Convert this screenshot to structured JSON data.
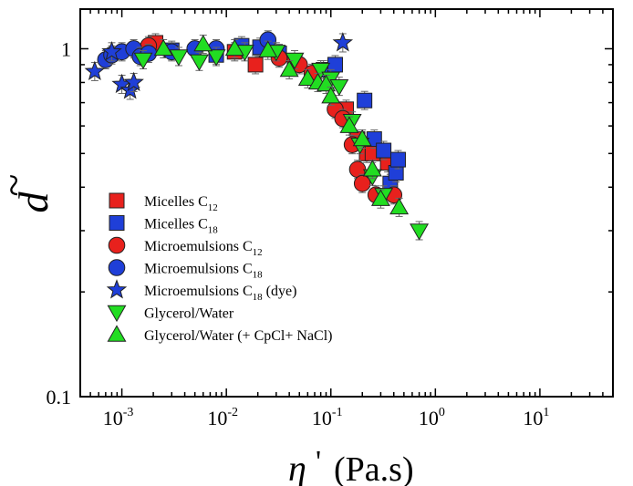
{
  "chart_data": {
    "type": "scatter",
    "xlabel": {
      "symbol": "η",
      "prime": "'",
      "unit": "(Pa.s)"
    },
    "ylabel": {
      "symbol": "d",
      "accent": "~"
    },
    "xscale": "log",
    "yscale": "log",
    "xlim": [
      0.0004,
      50
    ],
    "ylim": [
      0.1,
      1.3
    ],
    "x_ticks": [
      {
        "value": 0.001,
        "base": "10",
        "exp": "-3"
      },
      {
        "value": 0.01,
        "base": "10",
        "exp": "-2"
      },
      {
        "value": 0.1,
        "base": "10",
        "exp": "-1"
      },
      {
        "value": 1,
        "base": "10",
        "exp": "0"
      },
      {
        "value": 10,
        "base": "10",
        "exp": "1"
      }
    ],
    "y_ticks": [
      {
        "value": 0.1,
        "label": "0.1"
      },
      {
        "value": 1,
        "label": "1"
      }
    ],
    "legend_position": "left",
    "series": [
      {
        "name": "Micelles C12",
        "label": {
          "text": "Micelles C",
          "sub": "12",
          "suffix": ""
        },
        "marker": "square",
        "color": "#e8211d",
        "x": [
          0.0021,
          0.012,
          0.019,
          0.045,
          0.14,
          0.18,
          0.22,
          0.25,
          0.35
        ],
        "y": [
          1.04,
          0.98,
          0.9,
          0.9,
          0.67,
          0.55,
          0.5,
          0.5,
          0.47
        ]
      },
      {
        "name": "Micelles C18",
        "label": {
          "text": "Micelles C",
          "sub": "18",
          "suffix": ""
        },
        "marker": "square",
        "color": "#1f3fd8",
        "x": [
          0.003,
          0.008,
          0.014,
          0.021,
          0.032,
          0.085,
          0.11,
          0.21,
          0.26,
          0.32,
          0.37,
          0.42,
          0.44
        ],
        "y": [
          0.99,
          0.96,
          1.02,
          1.01,
          0.97,
          0.87,
          0.9,
          0.71,
          0.55,
          0.51,
          0.41,
          0.44,
          0.48
        ]
      },
      {
        "name": "Microemulsions C12",
        "label": {
          "text": "Microemulsions C",
          "sub": "12",
          "suffix": ""
        },
        "marker": "circle",
        "color": "#e8211d",
        "x": [
          0.0018,
          0.032,
          0.05,
          0.066,
          0.11,
          0.13,
          0.16,
          0.18,
          0.2,
          0.27,
          0.4
        ],
        "y": [
          1.02,
          0.94,
          0.9,
          0.85,
          0.67,
          0.63,
          0.53,
          0.45,
          0.41,
          0.38,
          0.38
        ]
      },
      {
        "name": "Microemulsions C18",
        "label": {
          "text": "Microemulsions C",
          "sub": "18",
          "suffix": ""
        },
        "marker": "circle",
        "color": "#1f3fd8",
        "x": [
          0.0007,
          0.0008,
          0.001,
          0.0013,
          0.0015,
          0.0018,
          0.003,
          0.005,
          0.008,
          0.025
        ],
        "y": [
          0.93,
          0.96,
          0.98,
          1.0,
          0.95,
          0.97,
          0.98,
          1.0,
          1.0,
          1.06
        ]
      },
      {
        "name": "Microemulsions C18 (dye)",
        "label": {
          "text": "Microemulsions C",
          "sub": "18",
          "suffix": " (dye)"
        },
        "marker": "star",
        "color": "#1f3fd8",
        "x": [
          0.00055,
          0.0008,
          0.001,
          0.0012,
          0.0013,
          0.13
        ],
        "y": [
          0.86,
          0.98,
          0.79,
          0.76,
          0.8,
          1.04
        ]
      },
      {
        "name": "Glycerol/Water",
        "label": {
          "text": "Glycerol/Water",
          "sub": "",
          "suffix": ""
        },
        "marker": "triangle-down",
        "color": "#22dd22",
        "x": [
          0.0016,
          0.0035,
          0.0055,
          0.008,
          0.015,
          0.03,
          0.045,
          0.08,
          0.1,
          0.12,
          0.16,
          0.19,
          0.25,
          0.32,
          0.7
        ],
        "y": [
          0.93,
          0.95,
          0.92,
          0.95,
          0.98,
          0.98,
          0.93,
          0.87,
          0.82,
          0.78,
          0.62,
          0.53,
          0.43,
          0.38,
          0.3
        ]
      },
      {
        "name": "Glycerol/Water (+ CpCl+ NaCl)",
        "label": {
          "text": "Glycerol/Water (+ CpCl+ NaCl)",
          "sub": "",
          "suffix": ""
        },
        "marker": "triangle-up",
        "color": "#22dd22",
        "x": [
          0.0025,
          0.006,
          0.012,
          0.025,
          0.04,
          0.06,
          0.075,
          0.09,
          0.1,
          0.15,
          0.2,
          0.25,
          0.3,
          0.45
        ],
        "y": [
          1.0,
          1.03,
          1.0,
          0.99,
          0.87,
          0.82,
          0.8,
          0.79,
          0.73,
          0.6,
          0.55,
          0.45,
          0.37,
          0.35
        ]
      }
    ]
  }
}
